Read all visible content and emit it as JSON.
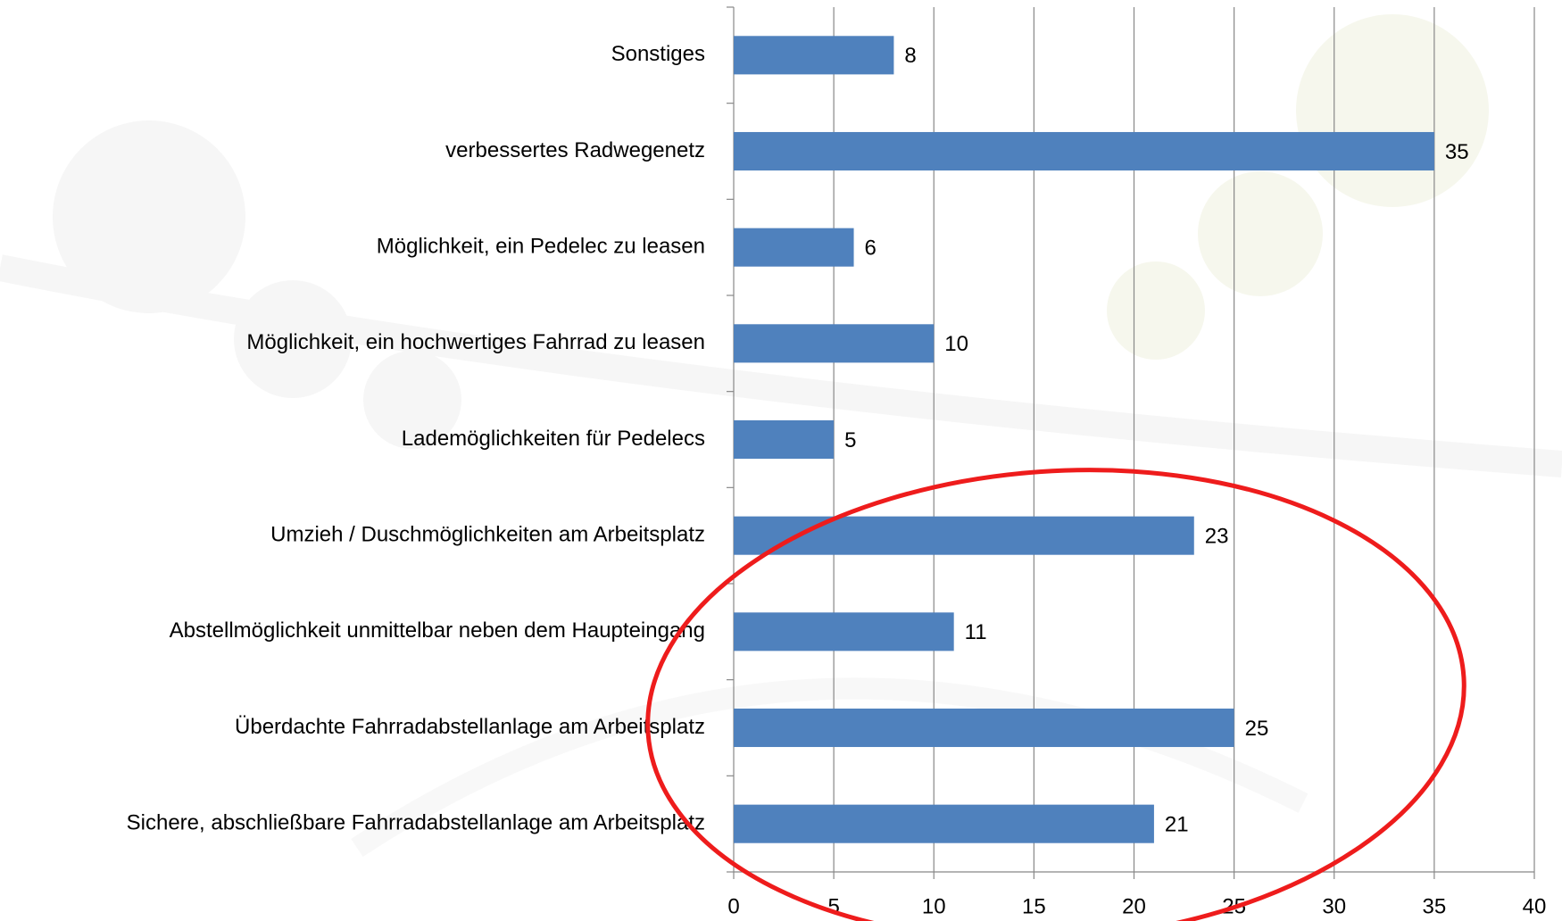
{
  "chart_data": {
    "type": "bar",
    "orientation": "horizontal",
    "categories": [
      "Sonstiges",
      "verbessertes Radwegenetz",
      "Möglichkeit, ein Pedelec zu leasen",
      "Möglichkeit, ein hochwertiges Fahrrad zu leasen",
      "Lademöglichkeiten für Pedelecs",
      "Umzieh / Duschmöglichkeiten am Arbeitsplatz",
      "Abstellmöglichkeit unmittelbar neben dem Haupteingang",
      "Überdachte Fahrradabstellanlage am Arbeitsplatz",
      "Sichere, abschließbare Fahrradabstellanlage am Arbeitsplatz"
    ],
    "values": [
      8,
      35,
      6,
      10,
      5,
      23,
      11,
      25,
      21
    ],
    "color": "#4f81bd",
    "xlim": [
      0,
      40
    ],
    "xticks": [
      0,
      5,
      10,
      15,
      20,
      25,
      30,
      35,
      40
    ],
    "grid": true
  }
}
